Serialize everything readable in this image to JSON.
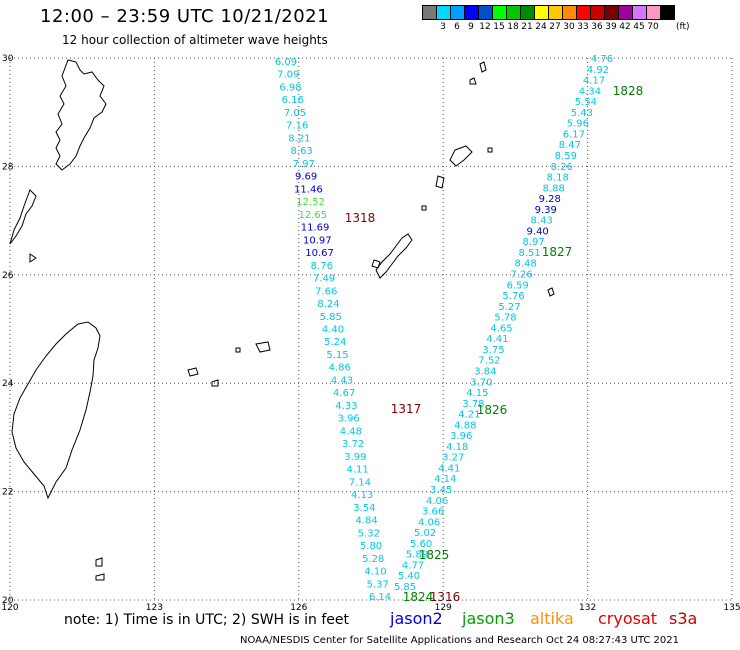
{
  "header": {
    "title": "12:00 – 23:59 UTC 10/21/2021",
    "subtitle": "12 hour collection of altimeter wave heights"
  },
  "color_scale": {
    "unit_label": "(ft)",
    "swatches": [
      {
        "color": "#787878",
        "label": ""
      },
      {
        "color": "#00d8ff",
        "label": "3"
      },
      {
        "color": "#00a0ff",
        "label": "6"
      },
      {
        "color": "#0000ff",
        "label": "9"
      },
      {
        "color": "#0050c8",
        "label": "12"
      },
      {
        "color": "#00ff00",
        "label": "15"
      },
      {
        "color": "#00c800",
        "label": "18"
      },
      {
        "color": "#008c00",
        "label": "21"
      },
      {
        "color": "#ffff00",
        "label": "24"
      },
      {
        "color": "#ffc800",
        "label": "27"
      },
      {
        "color": "#ff8c00",
        "label": "30"
      },
      {
        "color": "#ff0000",
        "label": "33"
      },
      {
        "color": "#c80000",
        "label": "36"
      },
      {
        "color": "#780000",
        "label": "39"
      },
      {
        "color": "#a000a0",
        "label": "42"
      },
      {
        "color": "#d278ff",
        "label": "45"
      },
      {
        "color": "#ff96c8",
        "label": "70"
      },
      {
        "color": "#000000",
        "label": ""
      }
    ]
  },
  "axes": {
    "lon_ticks": [
      "120",
      "123",
      "126",
      "129",
      "132",
      "135"
    ],
    "lat_ticks": [
      "20",
      "22",
      "24",
      "26",
      "28",
      "30"
    ]
  },
  "tracks": {
    "track_a": [
      {
        "v": "6.09",
        "c": "#00c8e6"
      },
      {
        "v": "7.09",
        "c": "#00c8e6"
      },
      {
        "v": "6.98",
        "c": "#00c8e6"
      },
      {
        "v": "6.16",
        "c": "#00c8e6"
      },
      {
        "v": "7.05",
        "c": "#00c8e6"
      },
      {
        "v": "7.16",
        "c": "#00c8e6"
      },
      {
        "v": "8.21",
        "c": "#00c8e6"
      },
      {
        "v": "8.63",
        "c": "#00c8e6"
      },
      {
        "v": "7.97",
        "c": "#00c8e6"
      },
      {
        "v": "9.69",
        "c": "#0000c8"
      },
      {
        "v": "11.46",
        "c": "#0000c8"
      },
      {
        "v": "12.52",
        "c": "#40e040"
      },
      {
        "v": "12.65",
        "c": "#40e040"
      },
      {
        "v": "11.69",
        "c": "#0000c8"
      },
      {
        "v": "10.97",
        "c": "#0000c8"
      },
      {
        "v": "10.67",
        "c": "#0000c8"
      },
      {
        "v": "8.76",
        "c": "#00c8e6"
      },
      {
        "v": "7.49",
        "c": "#00c8e6"
      },
      {
        "v": "7.66",
        "c": "#00c8e6"
      },
      {
        "v": "8.24",
        "c": "#00c8e6"
      },
      {
        "v": "5.85",
        "c": "#00c8e6"
      },
      {
        "v": "4.40",
        "c": "#00c8e6"
      },
      {
        "v": "5.24",
        "c": "#00c8e6"
      },
      {
        "v": "5.15",
        "c": "#00c8e6"
      },
      {
        "v": "4.86",
        "c": "#00c8e6"
      },
      {
        "v": "4.43",
        "c": "#00c8e6"
      },
      {
        "v": "4.67",
        "c": "#00c8e6"
      },
      {
        "v": "4.33",
        "c": "#00c8e6"
      },
      {
        "v": "3.96",
        "c": "#00c8e6"
      },
      {
        "v": "4.48",
        "c": "#00c8e6"
      },
      {
        "v": "3.72",
        "c": "#00c8e6"
      },
      {
        "v": "3.99",
        "c": "#00c8e6"
      },
      {
        "v": "4.11",
        "c": "#00c8e6"
      },
      {
        "v": "7.14",
        "c": "#00c8e6"
      },
      {
        "v": "4.13",
        "c": "#00c8e6"
      },
      {
        "v": "3.54",
        "c": "#00c8e6"
      },
      {
        "v": "4.84",
        "c": "#00c8e6"
      },
      {
        "v": "5.32",
        "c": "#00c8e6"
      },
      {
        "v": "5.80",
        "c": "#00c8e6"
      },
      {
        "v": "5.28",
        "c": "#00c8e6"
      },
      {
        "v": "4.10",
        "c": "#00c8e6"
      },
      {
        "v": "5.37",
        "c": "#00c8e6"
      },
      {
        "v": "6.14",
        "c": "#00c8e6"
      }
    ],
    "track_b": [
      {
        "v": "4.76",
        "c": "#00c8e6"
      },
      {
        "v": "4.92",
        "c": "#00c8e6"
      },
      {
        "v": "4.17",
        "c": "#00c8e6"
      },
      {
        "v": "4.34",
        "c": "#00c8e6"
      },
      {
        "v": "5.54",
        "c": "#00c8e6"
      },
      {
        "v": "5.43",
        "c": "#00c8e6"
      },
      {
        "v": "5.96",
        "c": "#00c8e6"
      },
      {
        "v": "6.17",
        "c": "#00c8e6"
      },
      {
        "v": "8.47",
        "c": "#00c8e6"
      },
      {
        "v": "8.59",
        "c": "#00c8e6"
      },
      {
        "v": "8.26",
        "c": "#00c8e6"
      },
      {
        "v": "8.18",
        "c": "#00c8e6"
      },
      {
        "v": "8.88",
        "c": "#00c8e6"
      },
      {
        "v": "9.28",
        "c": "#0000c8"
      },
      {
        "v": "9.39",
        "c": "#0000c8"
      },
      {
        "v": "8.43",
        "c": "#00c8e6"
      },
      {
        "v": "9.40",
        "c": "#0000c8"
      },
      {
        "v": "8.97",
        "c": "#00c8e6"
      },
      {
        "v": "8.51",
        "c": "#00c8e6"
      },
      {
        "v": "8.48",
        "c": "#00c8e6"
      },
      {
        "v": "7.26",
        "c": "#00c8e6"
      },
      {
        "v": "6.59",
        "c": "#00c8e6"
      },
      {
        "v": "5.76",
        "c": "#00c8e6"
      },
      {
        "v": "5.27",
        "c": "#00c8e6"
      },
      {
        "v": "5.78",
        "c": "#00c8e6"
      },
      {
        "v": "4.65",
        "c": "#00c8e6"
      },
      {
        "v": "4.41",
        "c": "#00c8e6"
      },
      {
        "v": "3.75",
        "c": "#00c8e6"
      },
      {
        "v": "7.52",
        "c": "#00c8e6"
      },
      {
        "v": "3.84",
        "c": "#00c8e6"
      },
      {
        "v": "3.70",
        "c": "#00c8e6"
      },
      {
        "v": "4.15",
        "c": "#00c8e6"
      },
      {
        "v": "3.78",
        "c": "#00c8e6"
      },
      {
        "v": "4.21",
        "c": "#00c8e6"
      },
      {
        "v": "4.88",
        "c": "#00c8e6"
      },
      {
        "v": "3.96",
        "c": "#00c8e6"
      },
      {
        "v": "4.18",
        "c": "#00c8e6"
      },
      {
        "v": "3.27",
        "c": "#00c8e6"
      },
      {
        "v": "4.41",
        "c": "#00c8e6"
      },
      {
        "v": "4.14",
        "c": "#00c8e6"
      },
      {
        "v": "3.45",
        "c": "#00c8e6"
      },
      {
        "v": "4.06",
        "c": "#00c8e6"
      },
      {
        "v": "3.66",
        "c": "#00c8e6"
      },
      {
        "v": "4.06",
        "c": "#00c8e6"
      },
      {
        "v": "5.02",
        "c": "#00c8e6"
      },
      {
        "v": "5.60",
        "c": "#00c8e6"
      },
      {
        "v": "5.89",
        "c": "#00c8e6"
      },
      {
        "v": "4.77",
        "c": "#00c8e6"
      },
      {
        "v": "5.40",
        "c": "#00c8e6"
      },
      {
        "v": "5.85",
        "c": "#00c8e6"
      }
    ]
  },
  "time_labels": [
    {
      "text": "1828",
      "color": "#008000"
    },
    {
      "text": "1318",
      "color": "#800000"
    },
    {
      "text": "1827",
      "color": "#008000"
    },
    {
      "text": "1317",
      "color": "#800000"
    },
    {
      "text": "1826",
      "color": "#008000"
    },
    {
      "text": "1825",
      "color": "#008000"
    },
    {
      "text": "1824",
      "color": "#008000"
    },
    {
      "text": "1316",
      "color": "#800000"
    }
  ],
  "note": "note:  1) Time is in UTC;  2) SWH is in feet",
  "legend": [
    {
      "text": "jason2",
      "color": "#0000e0"
    },
    {
      "text": "jason3",
      "color": "#00a000"
    },
    {
      "text": "altika",
      "color": "#ff9000"
    },
    {
      "text": "cryosat",
      "color": "#e00000"
    },
    {
      "text": "s3a",
      "color": "#c00000"
    }
  ],
  "footer": "NOAA/NESDIS Center for Satellite Applications and Research     Oct 24 08:27:43 UTC 2021"
}
